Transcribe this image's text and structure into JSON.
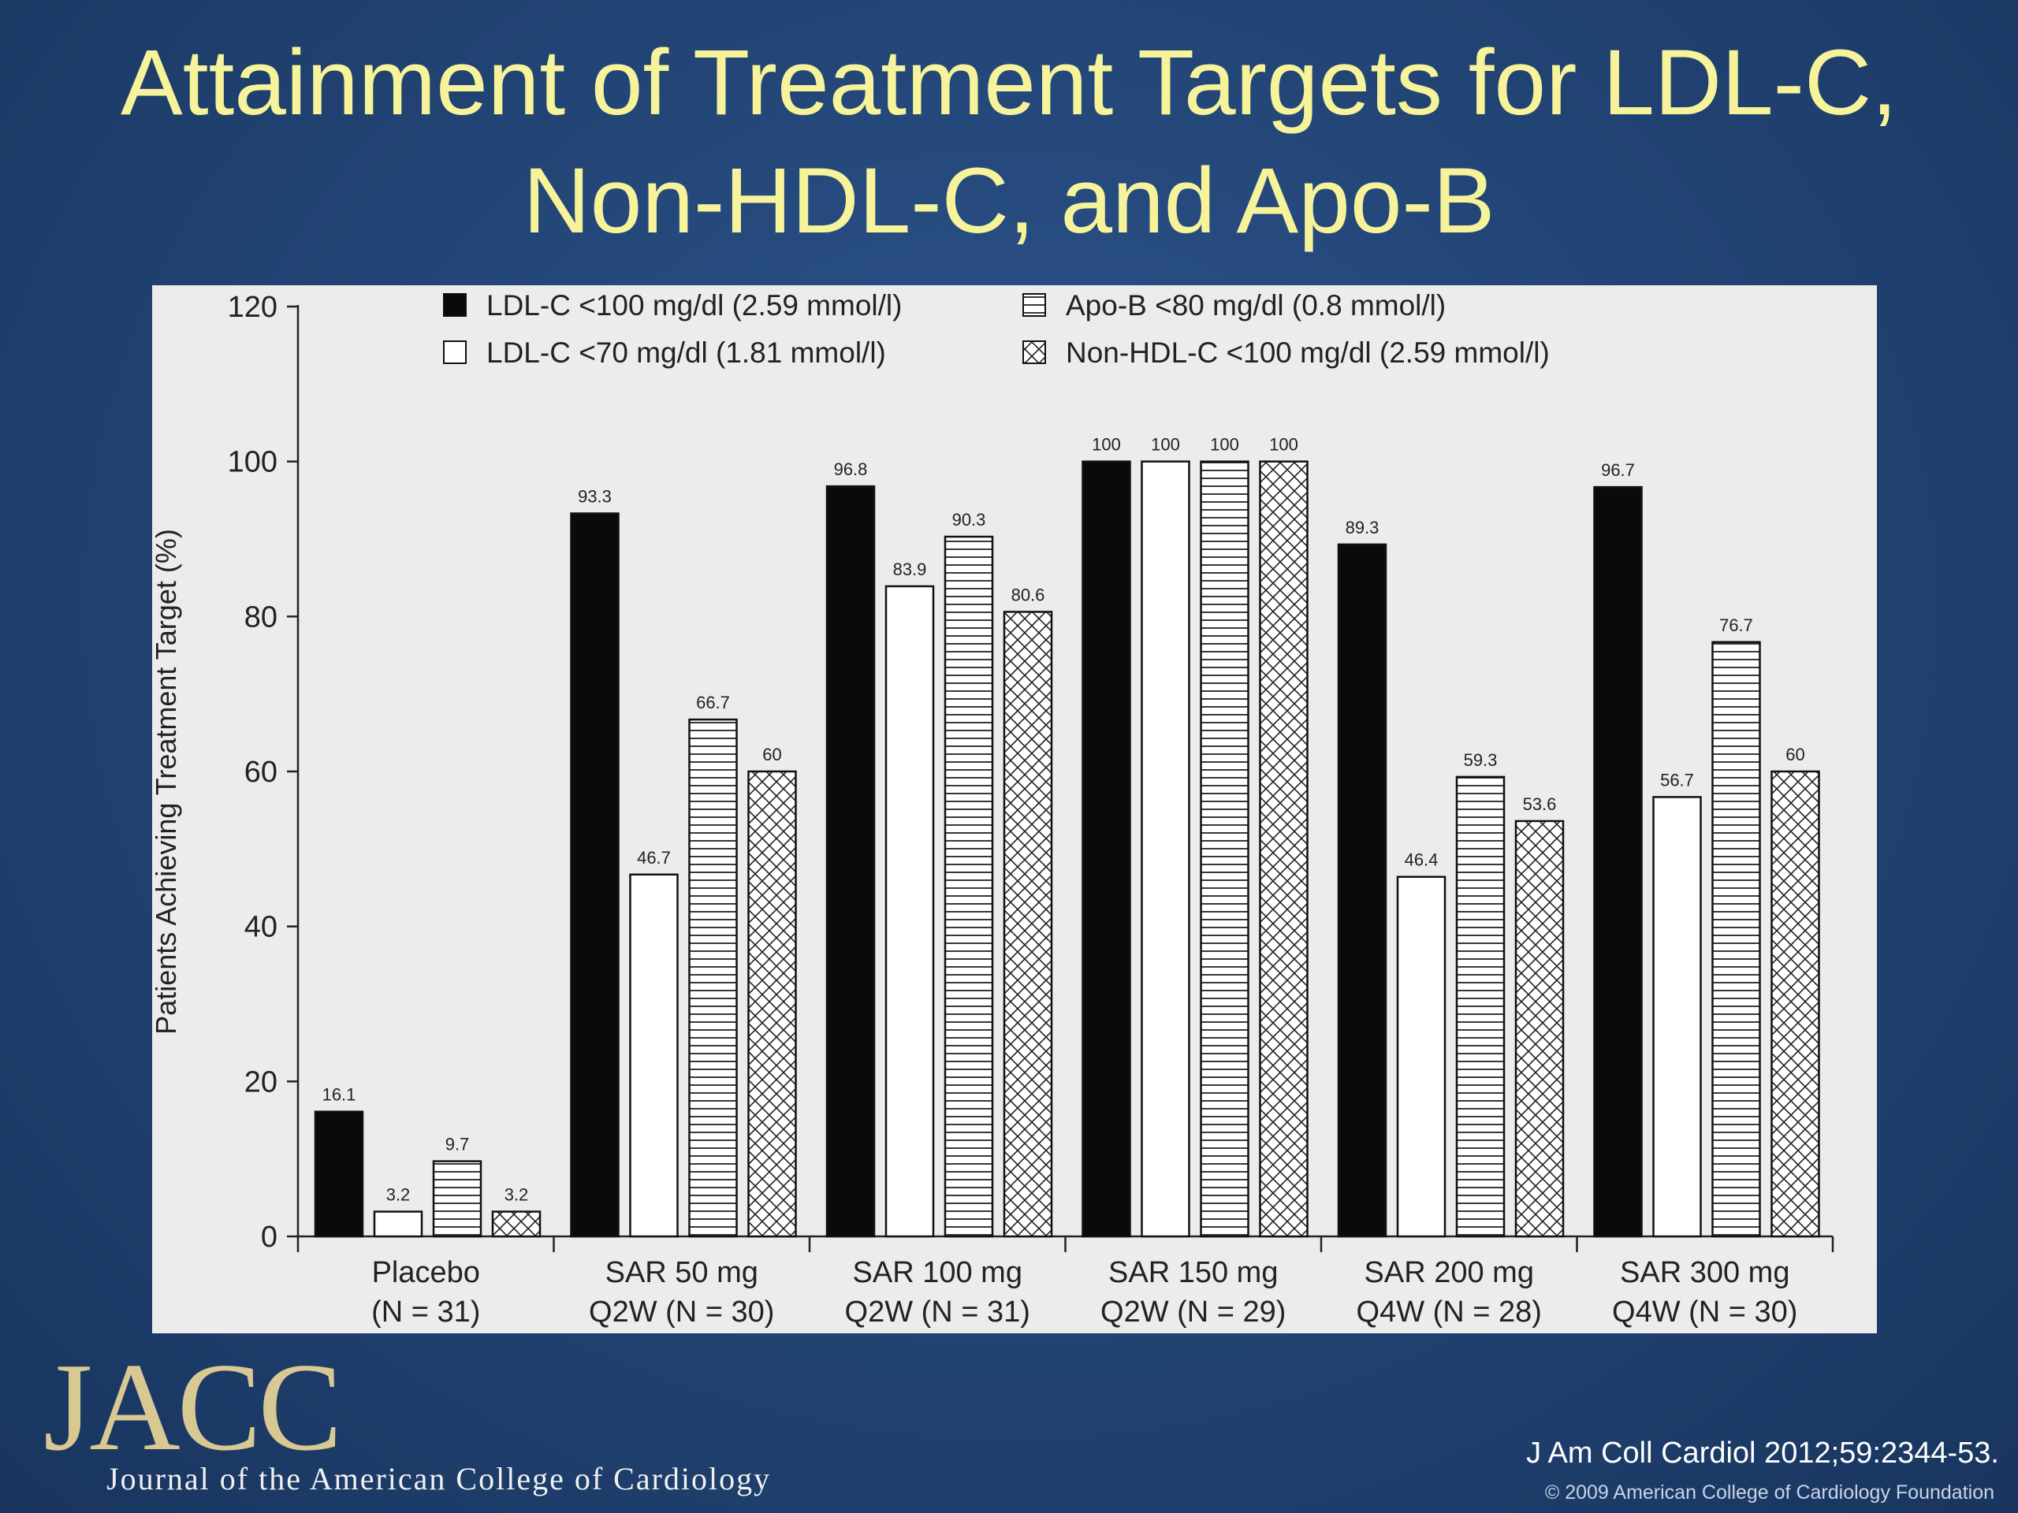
{
  "slide": {
    "title_line1": "Attainment of Treatment Targets for LDL-C,",
    "title_line2": "Non-HDL-C, and Apo-B",
    "logo": "JACC",
    "journal_name": "Journal of the American College of Cardiology",
    "citation": "J Am Coll Cardiol 2012;59:2344-53.",
    "copyright": "© 2009 American College of Cardiology Foundation"
  },
  "chart_data": {
    "type": "bar",
    "ylabel": "Patients Achieving Treatment Target (%)",
    "xlabel": "",
    "ylim": [
      0,
      120
    ],
    "yticks": [
      0,
      20,
      40,
      60,
      80,
      100,
      120
    ],
    "grid": false,
    "legend_position": "top",
    "categories": [
      [
        "Placebo",
        "(N = 31)"
      ],
      [
        "SAR 50 mg",
        "Q2W (N = 30)"
      ],
      [
        "SAR 100 mg",
        "Q2W (N = 31)"
      ],
      [
        "SAR 150 mg",
        "Q2W (N = 29)"
      ],
      [
        "SAR 200 mg",
        "Q4W (N = 28)"
      ],
      [
        "SAR 300 mg",
        "Q4W (N = 30)"
      ]
    ],
    "series": [
      {
        "name": "LDL-C <100 mg/dl (2.59 mmol/l)",
        "fill": "solid-black",
        "values": [
          16.1,
          93.3,
          96.8,
          100,
          89.3,
          96.7
        ],
        "labels": [
          "16.1",
          "93.3",
          "96.8",
          "100",
          "89.3",
          "96.7"
        ]
      },
      {
        "name": "LDL-C <70 mg/dl (1.81 mmol/l)",
        "fill": "white",
        "values": [
          3.2,
          46.7,
          83.9,
          100,
          46.4,
          56.7
        ],
        "labels": [
          "3.2",
          "46.7",
          "83.9",
          "100",
          "46.4",
          "56.7"
        ]
      },
      {
        "name": "Apo-B <80 mg/dl (0.8 mmol/l)",
        "fill": "horizontal-lines",
        "values": [
          9.7,
          66.7,
          90.3,
          100,
          59.3,
          76.7
        ],
        "labels": [
          "9.7",
          "66.7",
          "90.3",
          "100",
          "59.3",
          "76.7"
        ]
      },
      {
        "name": "Non-HDL-C <100 mg/dl (2.59 mmol/l)",
        "fill": "crosshatch",
        "values": [
          3.2,
          60,
          80.6,
          100,
          53.6,
          60
        ],
        "labels": [
          "3.2",
          "60",
          "80.6",
          "100",
          "53.6",
          "60"
        ]
      }
    ],
    "colors": {
      "bar_stroke": "#111111",
      "solid": "#0a0a0a",
      "hatch": "#222222",
      "panel": "#ececec"
    }
  }
}
